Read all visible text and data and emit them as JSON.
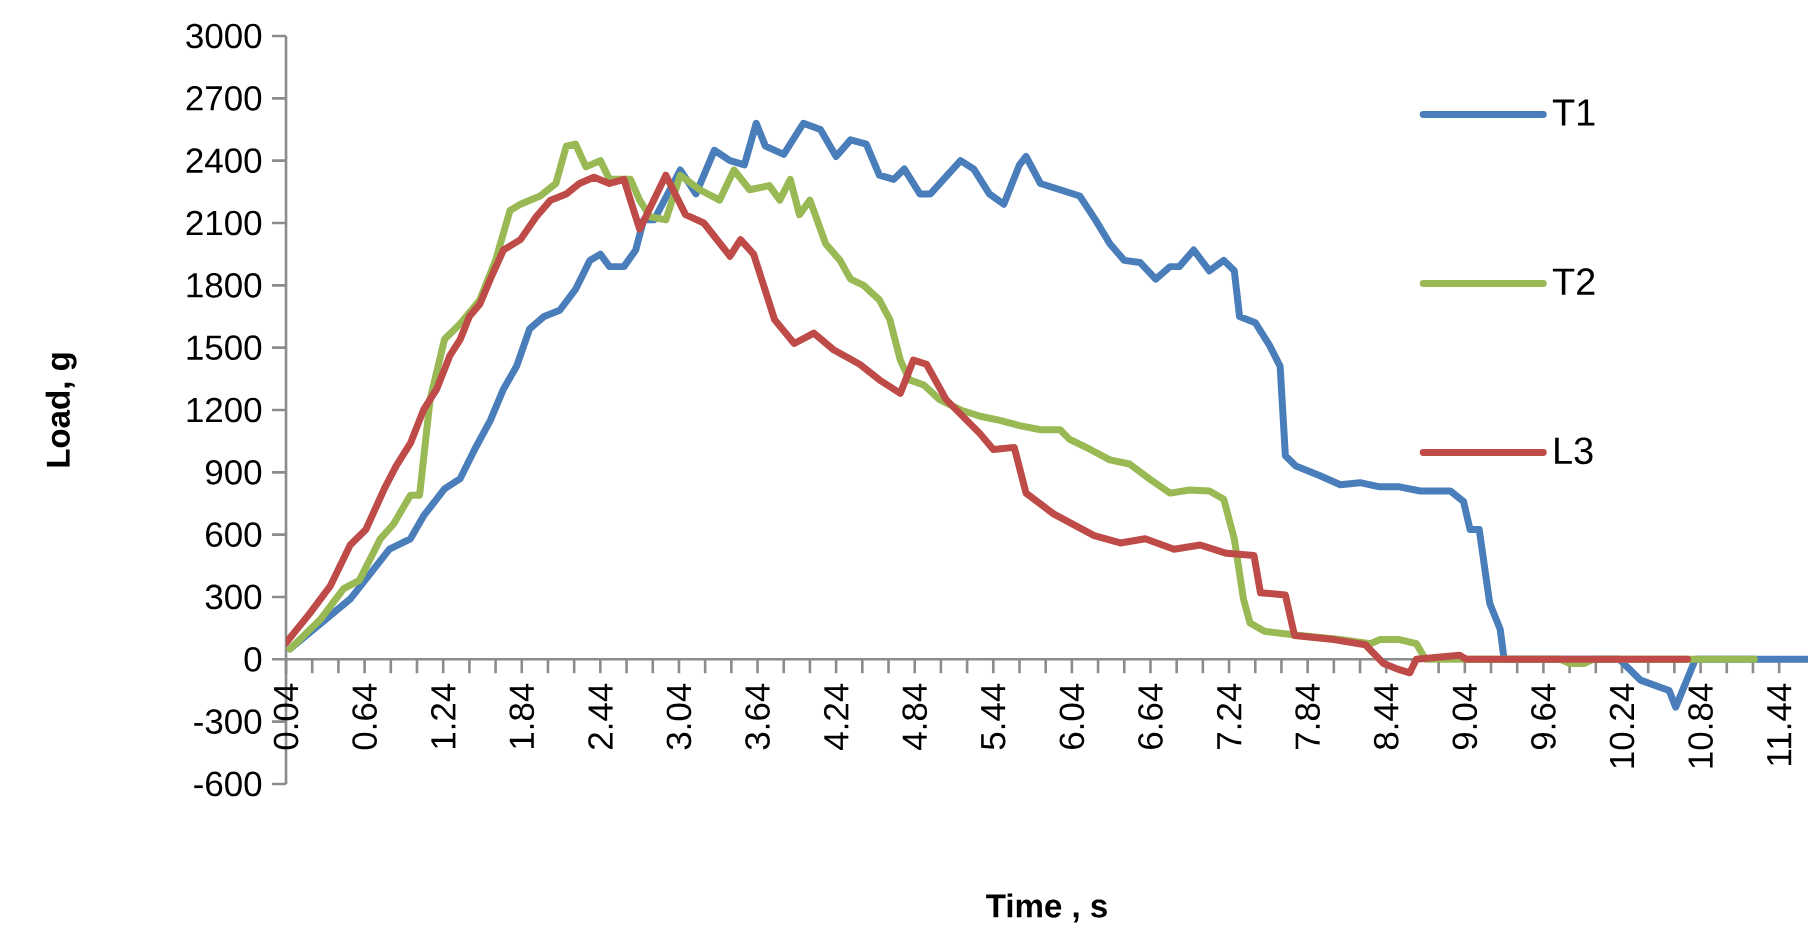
{
  "chart_data": {
    "type": "line",
    "xlabel": "Time , s",
    "ylabel": "Load, g",
    "xlim": [
      0.04,
      11.66
    ],
    "ylim": [
      -600,
      3000
    ],
    "xticks": [
      0.04,
      0.64,
      1.24,
      1.84,
      2.44,
      3.04,
      3.64,
      4.24,
      4.84,
      5.44,
      6.04,
      6.64,
      7.24,
      7.84,
      8.44,
      9.04,
      9.64,
      10.24,
      10.84,
      11.44
    ],
    "yticks": [
      -600,
      -300,
      0,
      300,
      600,
      900,
      1200,
      1500,
      1800,
      2100,
      2400,
      2700,
      3000
    ],
    "legend": "right",
    "series": [
      {
        "name": "T1",
        "color": "#4a7ebb",
        "x": [
          0.07,
          0.3,
          0.53,
          0.68,
          0.83,
          0.99,
          1.09,
          1.25,
          1.37,
          1.48,
          1.6,
          1.7,
          1.8,
          1.9,
          2.01,
          2.13,
          2.25,
          2.36,
          2.44,
          2.51,
          2.62,
          2.71,
          2.77,
          2.85,
          3.05,
          3.17,
          3.31,
          3.43,
          3.54,
          3.63,
          3.7,
          3.84,
          3.99,
          4.12,
          4.24,
          4.35,
          4.47,
          4.57,
          4.68,
          4.76,
          4.88,
          4.96,
          5.06,
          5.19,
          5.29,
          5.41,
          5.52,
          5.64,
          5.69,
          5.8,
          5.95,
          6.1,
          6.22,
          6.33,
          6.44,
          6.56,
          6.68,
          6.79,
          6.86,
          6.97,
          7.09,
          7.2,
          7.28,
          7.32,
          7.44,
          7.55,
          7.63,
          7.67,
          7.75,
          7.93,
          8.09,
          8.24,
          8.39,
          8.54,
          8.7,
          8.93,
          9.03,
          9.08,
          9.15,
          9.23,
          9.31,
          9.34,
          10.22,
          10.38,
          10.6,
          10.65,
          10.8,
          11.66
        ],
        "values": [
          50,
          170,
          290,
          410,
          530,
          580,
          690,
          820,
          870,
          1010,
          1150,
          1300,
          1410,
          1590,
          1650,
          1680,
          1780,
          1920,
          1950,
          1890,
          1890,
          1970,
          2115,
          2115,
          2355,
          2240,
          2450,
          2400,
          2380,
          2580,
          2470,
          2430,
          2580,
          2550,
          2420,
          2500,
          2480,
          2330,
          2310,
          2360,
          2240,
          2240,
          2310,
          2400,
          2360,
          2240,
          2190,
          2380,
          2420,
          2290,
          2260,
          2230,
          2115,
          2000,
          1920,
          1910,
          1830,
          1890,
          1890,
          1970,
          1870,
          1920,
          1870,
          1650,
          1620,
          1510,
          1410,
          980,
          930,
          885,
          840,
          850,
          830,
          830,
          810,
          810,
          760,
          625,
          625,
          270,
          145,
          0,
          0,
          -100,
          -150,
          -230,
          0,
          0
        ]
      },
      {
        "name": "T2",
        "color": "#98b954",
        "x": [
          0.07,
          0.3,
          0.48,
          0.6,
          0.76,
          0.86,
          0.99,
          1.06,
          1.14,
          1.25,
          1.37,
          1.52,
          1.64,
          1.75,
          1.83,
          1.98,
          2.1,
          2.18,
          2.25,
          2.33,
          2.44,
          2.51,
          2.67,
          2.74,
          2.82,
          2.94,
          3.05,
          3.2,
          3.35,
          3.46,
          3.58,
          3.73,
          3.81,
          3.89,
          3.96,
          4.04,
          4.16,
          4.27,
          4.35,
          4.45,
          4.57,
          4.65,
          4.73,
          4.8,
          4.91,
          5.03,
          5.19,
          5.34,
          5.49,
          5.64,
          5.8,
          5.95,
          6.02,
          6.18,
          6.33,
          6.48,
          6.64,
          6.79,
          6.94,
          7.09,
          7.2,
          7.28,
          7.35,
          7.4,
          7.51,
          7.78,
          8.09,
          8.32,
          8.39,
          8.54,
          8.67,
          8.74,
          9.77,
          9.84,
          9.95,
          10.02,
          11.25
        ],
        "values": [
          50,
          190,
          340,
          380,
          580,
          650,
          790,
          790,
          1250,
          1540,
          1615,
          1730,
          1920,
          2160,
          2190,
          2230,
          2290,
          2470,
          2480,
          2370,
          2400,
          2310,
          2310,
          2210,
          2130,
          2115,
          2330,
          2260,
          2210,
          2355,
          2260,
          2280,
          2210,
          2310,
          2140,
          2210,
          2000,
          1920,
          1830,
          1800,
          1730,
          1635,
          1440,
          1345,
          1320,
          1250,
          1200,
          1170,
          1150,
          1125,
          1105,
          1105,
          1060,
          1010,
          960,
          940,
          865,
          800,
          815,
          810,
          770,
          580,
          290,
          175,
          135,
          115,
          95,
          75,
          95,
          95,
          75,
          0,
          0,
          -20,
          -20,
          0,
          0
        ]
      },
      {
        "name": "L3",
        "color": "#be4b48",
        "x": [
          0.04,
          0.22,
          0.38,
          0.53,
          0.65,
          0.79,
          0.88,
          0.99,
          1.09,
          1.19,
          1.29,
          1.37,
          1.44,
          1.52,
          1.6,
          1.7,
          1.83,
          1.95,
          2.06,
          2.18,
          2.28,
          2.39,
          2.51,
          2.62,
          2.74,
          2.94,
          3.09,
          3.23,
          3.43,
          3.51,
          3.61,
          3.77,
          3.92,
          4.07,
          4.22,
          4.42,
          4.57,
          4.73,
          4.83,
          4.93,
          5.08,
          5.34,
          5.44,
          5.6,
          5.69,
          5.9,
          6.21,
          6.41,
          6.6,
          6.82,
          7.02,
          7.22,
          7.43,
          7.48,
          7.67,
          7.74,
          8.04,
          8.28,
          8.42,
          8.54,
          8.62,
          8.67,
          9.0,
          9.05,
          10.74
        ],
        "values": [
          80,
          220,
          355,
          550,
          625,
          820,
          930,
          1040,
          1200,
          1300,
          1460,
          1540,
          1650,
          1710,
          1830,
          1970,
          2020,
          2130,
          2210,
          2240,
          2290,
          2320,
          2290,
          2310,
          2070,
          2330,
          2140,
          2100,
          1940,
          2020,
          1950,
          1635,
          1520,
          1570,
          1490,
          1420,
          1345,
          1280,
          1440,
          1420,
          1250,
          1085,
          1010,
          1020,
          800,
          700,
          595,
          560,
          580,
          530,
          550,
          510,
          500,
          320,
          310,
          115,
          95,
          70,
          -20,
          -50,
          -65,
          0,
          20,
          0,
          0
        ]
      }
    ]
  }
}
